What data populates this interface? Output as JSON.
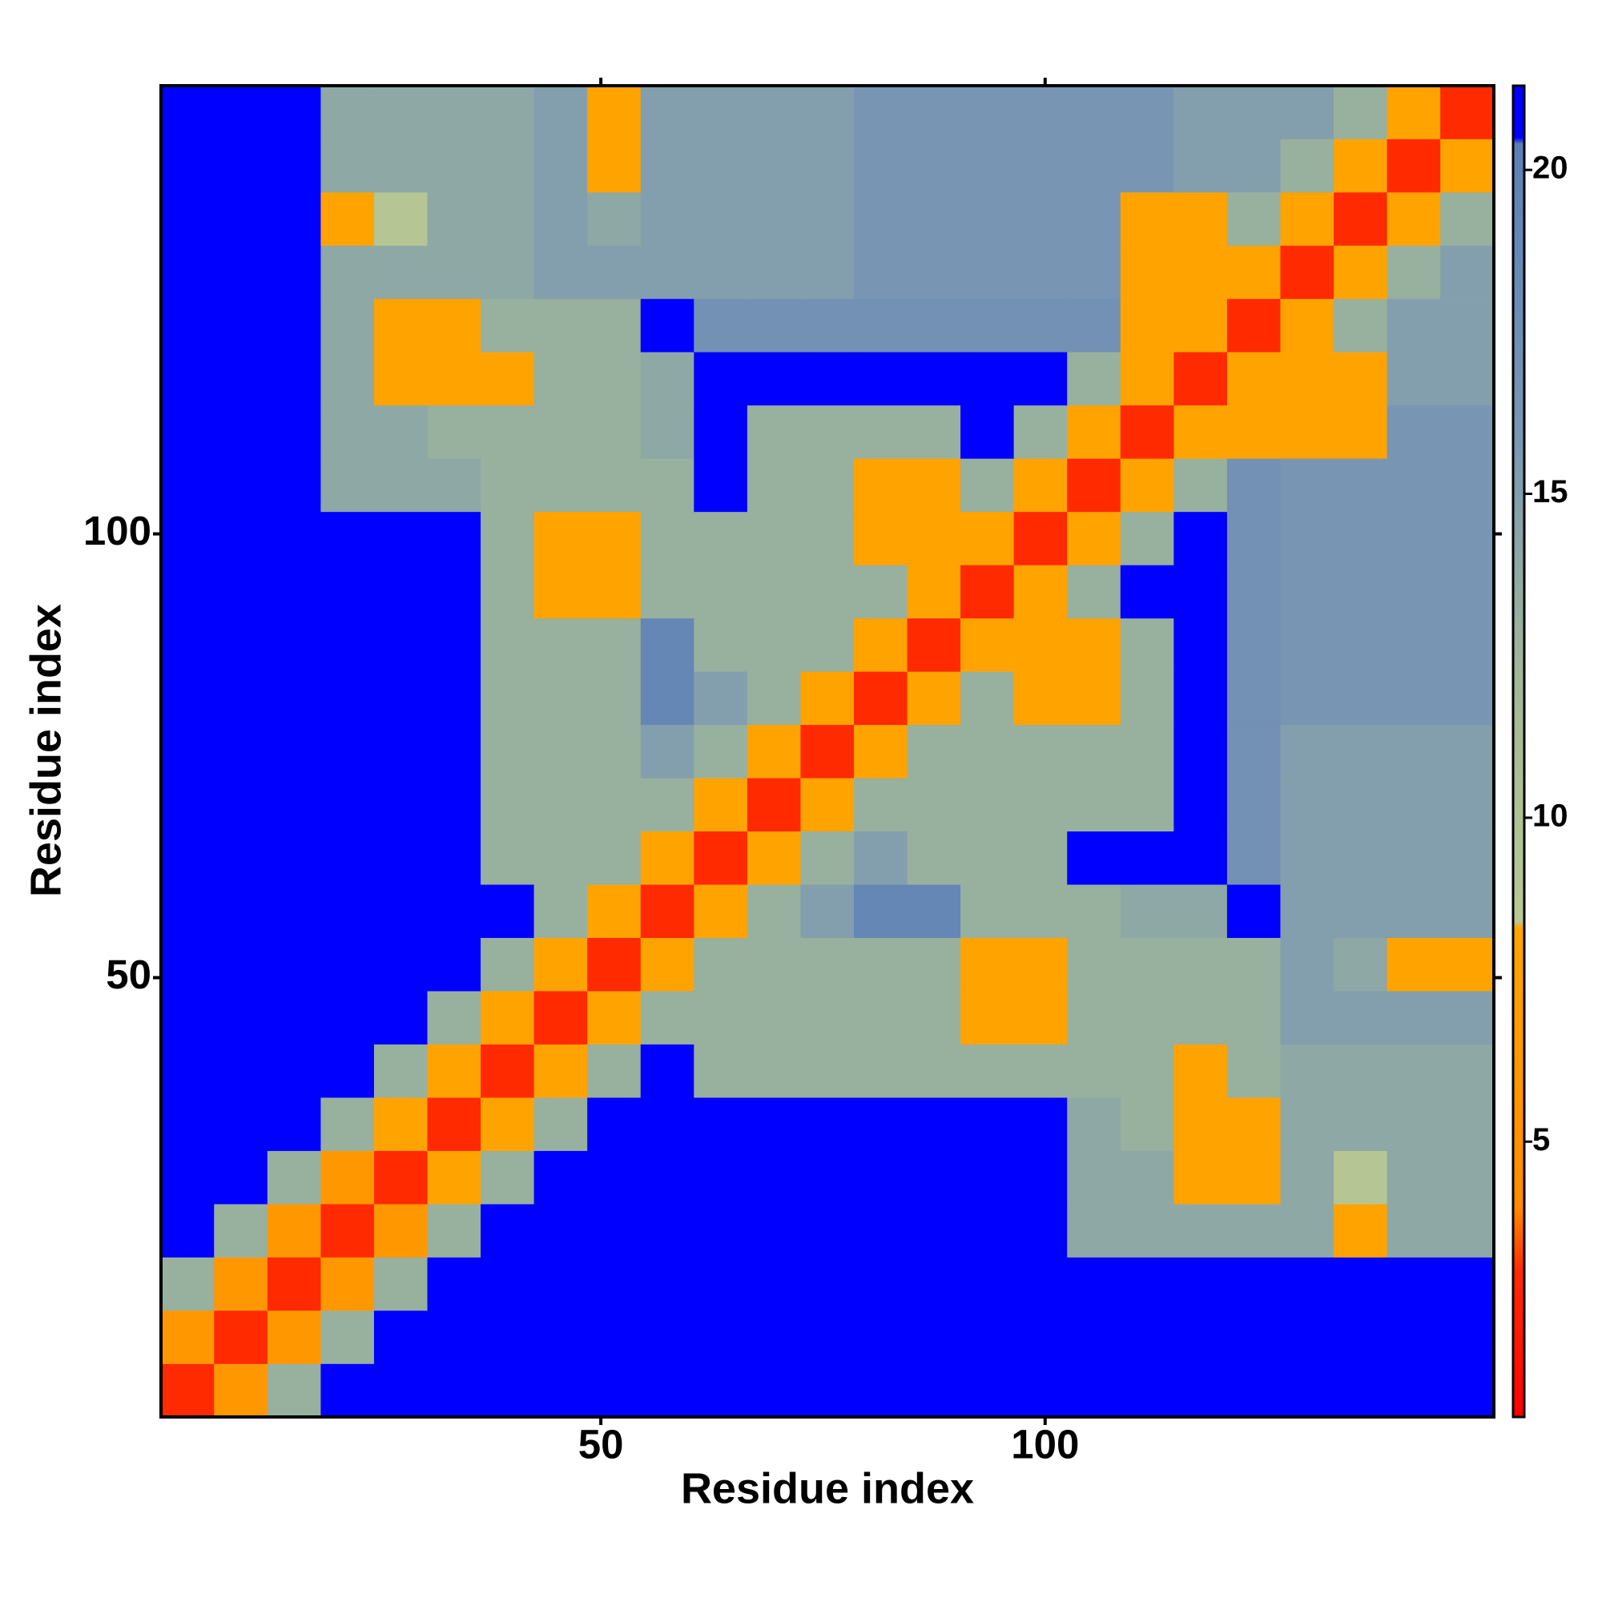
{
  "chart_data": {
    "type": "heatmap",
    "xlabel": "Residue index",
    "ylabel": "Residue index",
    "x": [
      3.5,
      9.5,
      15.5,
      21.5,
      27.5,
      33.5,
      39.5,
      45.5,
      51.5,
      57.5,
      63.5,
      69.5,
      75.5,
      81.5,
      87.5,
      93.5,
      99.5,
      105.5,
      111.5,
      117.5,
      123.5,
      129.5,
      135.5,
      141.5,
      147.5
    ],
    "y": [
      3.5,
      9.5,
      15.5,
      21.5,
      27.5,
      33.5,
      39.5,
      45.5,
      51.5,
      57.5,
      63.5,
      69.5,
      75.5,
      81.5,
      87.5,
      93.5,
      99.5,
      105.5,
      111.5,
      117.5,
      123.5,
      129.5,
      135.5,
      141.5,
      147.5
    ],
    "z": [
      [
        3,
        6,
        13,
        21,
        21,
        21,
        21,
        21,
        21,
        21,
        21,
        21,
        21,
        21,
        21,
        21,
        21,
        21,
        21,
        21,
        21,
        21,
        21,
        21,
        21
      ],
      [
        6,
        3,
        6,
        13,
        21,
        21,
        21,
        21,
        21,
        21,
        21,
        21,
        21,
        21,
        21,
        21,
        21,
        21,
        21,
        21,
        21,
        21,
        21,
        21,
        21
      ],
      [
        13,
        6,
        3,
        6,
        13,
        21,
        21,
        21,
        21,
        21,
        21,
        21,
        21,
        21,
        21,
        21,
        21,
        21,
        21,
        21,
        21,
        21,
        21,
        21,
        21
      ],
      [
        21,
        13,
        6,
        3,
        6,
        13,
        21,
        21,
        21,
        21,
        21,
        21,
        21,
        21,
        21,
        21,
        21,
        14,
        14,
        14,
        14,
        14,
        8,
        14,
        14
      ],
      [
        21,
        21,
        13,
        6,
        3,
        8,
        13,
        21,
        21,
        21,
        21,
        21,
        21,
        21,
        21,
        21,
        21,
        14,
        14,
        8,
        8,
        14,
        9,
        14,
        14
      ],
      [
        21,
        21,
        21,
        13,
        8,
        3,
        8,
        13,
        21,
        21,
        21,
        21,
        21,
        21,
        21,
        21,
        21,
        14,
        13,
        8,
        8,
        14,
        14,
        14,
        14
      ],
      [
        21,
        21,
        21,
        21,
        13,
        8,
        3,
        8,
        13,
        21,
        13,
        13,
        13,
        13,
        13,
        13,
        13,
        13,
        13,
        8,
        13,
        14,
        14,
        14,
        14
      ],
      [
        21,
        21,
        21,
        21,
        21,
        13,
        8,
        3,
        8,
        13,
        13,
        13,
        13,
        13,
        13,
        8,
        8,
        13,
        13,
        13,
        13,
        15,
        15,
        15,
        15
      ],
      [
        21,
        21,
        21,
        21,
        21,
        21,
        13,
        8,
        3,
        8,
        13,
        13,
        13,
        13,
        13,
        8,
        8,
        13,
        13,
        13,
        13,
        15,
        14,
        8,
        8
      ],
      [
        21,
        21,
        21,
        21,
        21,
        21,
        21,
        13,
        8,
        3,
        8,
        13,
        15,
        19,
        19,
        13,
        13,
        13,
        14,
        14,
        21,
        15,
        15,
        15,
        15
      ],
      [
        21,
        21,
        21,
        21,
        21,
        21,
        13,
        13,
        13,
        8,
        3,
        8,
        13,
        15,
        13,
        13,
        13,
        21,
        21,
        21,
        17,
        15,
        15,
        15,
        15
      ],
      [
        21,
        21,
        21,
        21,
        21,
        21,
        13,
        13,
        13,
        13,
        8,
        3,
        8,
        13,
        13,
        13,
        13,
        13,
        13,
        21,
        17,
        15,
        15,
        15,
        15
      ],
      [
        21,
        21,
        21,
        21,
        21,
        21,
        13,
        13,
        13,
        15,
        13,
        8,
        3,
        8,
        13,
        13,
        13,
        13,
        13,
        21,
        17,
        15,
        15,
        15,
        15
      ],
      [
        21,
        21,
        21,
        21,
        21,
        21,
        13,
        13,
        13,
        19,
        15,
        13,
        8,
        3,
        8,
        13,
        8,
        8,
        13,
        21,
        17,
        16,
        16,
        16,
        16
      ],
      [
        21,
        21,
        21,
        21,
        21,
        21,
        13,
        13,
        13,
        19,
        13,
        13,
        13,
        8,
        3,
        8,
        8,
        8,
        13,
        21,
        17,
        16,
        16,
        16,
        16
      ],
      [
        21,
        21,
        21,
        21,
        21,
        21,
        13,
        8,
        8,
        13,
        13,
        13,
        13,
        13,
        8,
        3,
        8,
        13,
        21,
        21,
        17,
        16,
        16,
        16,
        16
      ],
      [
        21,
        21,
        21,
        21,
        21,
        21,
        13,
        8,
        8,
        13,
        13,
        13,
        13,
        8,
        8,
        8,
        3,
        8,
        13,
        21,
        17,
        16,
        16,
        16,
        16
      ],
      [
        21,
        21,
        21,
        14,
        14,
        14,
        13,
        13,
        13,
        13,
        21,
        13,
        13,
        8,
        8,
        13,
        8,
        3,
        8,
        13,
        17,
        16,
        16,
        16,
        16
      ],
      [
        21,
        21,
        21,
        14,
        14,
        13,
        13,
        13,
        13,
        14,
        21,
        13,
        13,
        13,
        13,
        21,
        13,
        8,
        3,
        8,
        8,
        8,
        8,
        16,
        16
      ],
      [
        21,
        21,
        21,
        14,
        8,
        8,
        8,
        13,
        13,
        14,
        21,
        21,
        21,
        21,
        21,
        21,
        21,
        13,
        8,
        3,
        8,
        8,
        8,
        15,
        15
      ],
      [
        21,
        21,
        21,
        14,
        8,
        8,
        13,
        13,
        13,
        21,
        17,
        17,
        17,
        17,
        17,
        17,
        17,
        17,
        8,
        8,
        3,
        8,
        13,
        15,
        15
      ],
      [
        21,
        21,
        21,
        14,
        14,
        14,
        14,
        15,
        15,
        15,
        15,
        15,
        15,
        16,
        16,
        16,
        16,
        16,
        8,
        8,
        8,
        3,
        8,
        13,
        15
      ],
      [
        21,
        21,
        21,
        8,
        9,
        14,
        14,
        15,
        14,
        15,
        15,
        15,
        15,
        16,
        16,
        16,
        16,
        16,
        8,
        8,
        13,
        8,
        3,
        8,
        13
      ],
      [
        21,
        21,
        21,
        14,
        14,
        14,
        14,
        15,
        8,
        15,
        15,
        15,
        15,
        16,
        16,
        16,
        16,
        16,
        16,
        15,
        15,
        13,
        8,
        3,
        8
      ],
      [
        21,
        21,
        21,
        14,
        14,
        14,
        14,
        15,
        8,
        15,
        15,
        15,
        15,
        16,
        16,
        16,
        16,
        16,
        16,
        15,
        15,
        15,
        13,
        8,
        3
      ]
    ],
    "xlim": [
      0.5,
      150.5
    ],
    "ylim": [
      0.5,
      150.5
    ],
    "xticks": [
      50,
      100
    ],
    "yticks": [
      50,
      100
    ],
    "colorscale": [
      [
        0.75,
        "#ff0000"
      ],
      [
        3,
        "#ff2a00"
      ],
      [
        4,
        "#ff8c00"
      ],
      [
        8.3,
        "#ffa500"
      ],
      [
        8.4,
        "#b8c994"
      ],
      [
        12,
        "#a3b996"
      ],
      [
        16,
        "#7896b4"
      ],
      [
        20.4,
        "#5c80b6"
      ],
      [
        20.5,
        "#0000ff"
      ],
      [
        21.3,
        "#0000ff"
      ]
    ],
    "clim": [
      0.75,
      21.3
    ],
    "cticks": [
      5,
      10,
      15,
      20
    ]
  }
}
